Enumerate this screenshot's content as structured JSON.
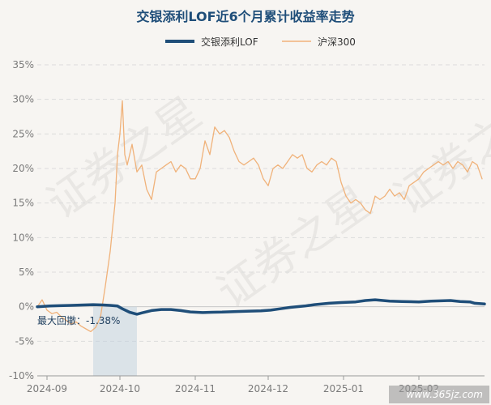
{
  "chart_data": {
    "type": "line",
    "title": "交银添利LOF近6个月累计收益率走势",
    "x_ticks": [
      "2024-09",
      "2024-10",
      "2024-11",
      "2024-12",
      "2025-01",
      "2025-02"
    ],
    "y_ticks": [
      "35%",
      "30%",
      "25%",
      "20%",
      "15%",
      "10%",
      "5%",
      "0%",
      "-5%",
      "-10%"
    ],
    "ylim": [
      -10,
      35
    ],
    "grid": true,
    "legend_position": "top",
    "annotation": "最大回撤：-1.38%",
    "drawdown_start": "2024-09-20",
    "drawdown_end": "2024-10-08",
    "series": [
      {
        "name": "交银添利LOF",
        "color": "#1f4e79",
        "points": [
          [
            "2024-08-28",
            0.0
          ],
          [
            "2024-09-02",
            0.1
          ],
          [
            "2024-09-06",
            0.15
          ],
          [
            "2024-09-11",
            0.2
          ],
          [
            "2024-09-16",
            0.25
          ],
          [
            "2024-09-20",
            0.3
          ],
          [
            "2024-09-24",
            0.25
          ],
          [
            "2024-09-27",
            0.2
          ],
          [
            "2024-09-30",
            0.1
          ],
          [
            "2024-10-02",
            -0.3
          ],
          [
            "2024-10-05",
            -0.8
          ],
          [
            "2024-10-08",
            -1.08
          ],
          [
            "2024-10-10",
            -0.9
          ],
          [
            "2024-10-14",
            -0.55
          ],
          [
            "2024-10-18",
            -0.4
          ],
          [
            "2024-10-22",
            -0.4
          ],
          [
            "2024-10-26",
            -0.55
          ],
          [
            "2024-10-30",
            -0.75
          ],
          [
            "2024-11-04",
            -0.85
          ],
          [
            "2024-11-08",
            -0.8
          ],
          [
            "2024-11-12",
            -0.78
          ],
          [
            "2024-11-18",
            -0.7
          ],
          [
            "2024-11-22",
            -0.65
          ],
          [
            "2024-11-28",
            -0.6
          ],
          [
            "2024-12-02",
            -0.5
          ],
          [
            "2024-12-06",
            -0.3
          ],
          [
            "2024-12-10",
            -0.1
          ],
          [
            "2024-12-16",
            0.1
          ],
          [
            "2024-12-20",
            0.3
          ],
          [
            "2024-12-26",
            0.5
          ],
          [
            "2024-12-31",
            0.6
          ],
          [
            "2025-01-06",
            0.7
          ],
          [
            "2025-01-10",
            0.9
          ],
          [
            "2025-01-14",
            1.0
          ],
          [
            "2025-01-20",
            0.8
          ],
          [
            "2025-01-25",
            0.75
          ],
          [
            "2025-02-01",
            0.7
          ],
          [
            "2025-02-06",
            0.8
          ],
          [
            "2025-02-10",
            0.85
          ],
          [
            "2025-02-14",
            0.9
          ],
          [
            "2025-02-18",
            0.75
          ],
          [
            "2025-02-22",
            0.7
          ],
          [
            "2025-02-24",
            0.5
          ],
          [
            "2025-02-28",
            0.4
          ]
        ]
      },
      {
        "name": "沪深300",
        "color": "#f0b27a",
        "points": [
          [
            "2024-08-28",
            0.0
          ],
          [
            "2024-08-30",
            1.0
          ],
          [
            "2024-09-01",
            -0.5
          ],
          [
            "2024-09-03",
            -1.0
          ],
          [
            "2024-09-05",
            -0.8
          ],
          [
            "2024-09-07",
            -1.5
          ],
          [
            "2024-09-09",
            -2.0
          ],
          [
            "2024-09-11",
            -2.5
          ],
          [
            "2024-09-13",
            -2.2
          ],
          [
            "2024-09-15",
            -2.8
          ],
          [
            "2024-09-17",
            -3.2
          ],
          [
            "2024-09-19",
            -3.6
          ],
          [
            "2024-09-21",
            -3.0
          ],
          [
            "2024-09-23",
            -1.5
          ],
          [
            "2024-09-25",
            3.0
          ],
          [
            "2024-09-27",
            8.0
          ],
          [
            "2024-09-29",
            15.0
          ],
          [
            "2024-09-30",
            22.0
          ],
          [
            "2024-10-01",
            25.0
          ],
          [
            "2024-10-02",
            29.8
          ],
          [
            "2024-10-03",
            22.0
          ],
          [
            "2024-10-04",
            20.5
          ],
          [
            "2024-10-06",
            23.5
          ],
          [
            "2024-10-08",
            19.5
          ],
          [
            "2024-10-10",
            20.5
          ],
          [
            "2024-10-12",
            17.0
          ],
          [
            "2024-10-14",
            15.5
          ],
          [
            "2024-10-16",
            19.5
          ],
          [
            "2024-10-18",
            20.0
          ],
          [
            "2024-10-20",
            20.5
          ],
          [
            "2024-10-22",
            21.0
          ],
          [
            "2024-10-24",
            19.5
          ],
          [
            "2024-10-26",
            20.5
          ],
          [
            "2024-10-28",
            20.0
          ],
          [
            "2024-10-30",
            18.5
          ],
          [
            "2024-11-01",
            18.5
          ],
          [
            "2024-11-03",
            20.0
          ],
          [
            "2024-11-05",
            24.0
          ],
          [
            "2024-11-07",
            22.0
          ],
          [
            "2024-11-09",
            26.0
          ],
          [
            "2024-11-11",
            25.0
          ],
          [
            "2024-11-13",
            25.5
          ],
          [
            "2024-11-15",
            24.5
          ],
          [
            "2024-11-17",
            22.5
          ],
          [
            "2024-11-19",
            21.0
          ],
          [
            "2024-11-21",
            20.5
          ],
          [
            "2024-11-23",
            21.0
          ],
          [
            "2024-11-25",
            21.5
          ],
          [
            "2024-11-27",
            20.5
          ],
          [
            "2024-11-29",
            18.5
          ],
          [
            "2024-12-01",
            17.5
          ],
          [
            "2024-12-03",
            20.0
          ],
          [
            "2024-12-05",
            20.5
          ],
          [
            "2024-12-07",
            20.0
          ],
          [
            "2024-12-09",
            21.0
          ],
          [
            "2024-12-11",
            22.0
          ],
          [
            "2024-12-13",
            21.5
          ],
          [
            "2024-12-15",
            22.0
          ],
          [
            "2024-12-17",
            20.0
          ],
          [
            "2024-12-19",
            19.5
          ],
          [
            "2024-12-21",
            20.5
          ],
          [
            "2024-12-23",
            21.0
          ],
          [
            "2024-12-25",
            20.5
          ],
          [
            "2024-12-27",
            21.5
          ],
          [
            "2024-12-29",
            21.0
          ],
          [
            "2024-12-31",
            18.0
          ],
          [
            "2025-01-02",
            16.0
          ],
          [
            "2025-01-04",
            15.0
          ],
          [
            "2025-01-06",
            15.5
          ],
          [
            "2025-01-08",
            15.0
          ],
          [
            "2025-01-10",
            14.0
          ],
          [
            "2025-01-12",
            13.5
          ],
          [
            "2025-01-14",
            16.0
          ],
          [
            "2025-01-16",
            15.5
          ],
          [
            "2025-01-18",
            16.0
          ],
          [
            "2025-01-20",
            17.0
          ],
          [
            "2025-01-22",
            16.0
          ],
          [
            "2025-01-24",
            16.5
          ],
          [
            "2025-01-26",
            15.5
          ],
          [
            "2025-01-28",
            17.5
          ],
          [
            "2025-02-01",
            18.5
          ],
          [
            "2025-02-03",
            19.5
          ],
          [
            "2025-02-05",
            20.0
          ],
          [
            "2025-02-07",
            20.5
          ],
          [
            "2025-02-09",
            21.0
          ],
          [
            "2025-02-11",
            20.5
          ],
          [
            "2025-02-13",
            21.0
          ],
          [
            "2025-02-15",
            20.0
          ],
          [
            "2025-02-17",
            21.0
          ],
          [
            "2025-02-19",
            20.5
          ],
          [
            "2025-02-21",
            19.5
          ],
          [
            "2025-02-23",
            21.0
          ],
          [
            "2025-02-25",
            20.5
          ],
          [
            "2025-02-27",
            18.5
          ]
        ]
      }
    ]
  },
  "watermark": [
    "证券之星",
    "证券之星",
    "证券之星"
  ],
  "footer_text": "www.365jz.com"
}
